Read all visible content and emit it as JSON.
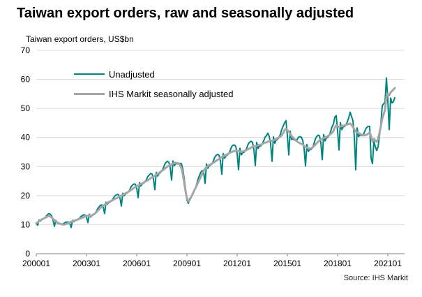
{
  "header": {
    "title": "Taiwan export orders, raw and seasonally adjusted",
    "subtitle": "Taiwan export orders, US$bn"
  },
  "footer": {
    "source": "Source: IHS Markit"
  },
  "colors": {
    "unadjusted": "#00857e",
    "seasonally_adjusted": "#a6a6a8",
    "grid": "#d9d9d9",
    "axis": "#808080",
    "text": "#000000"
  },
  "chart_data": {
    "type": "line",
    "title": "Taiwan export orders, raw and seasonally adjusted",
    "ylabel": "US$bn",
    "ylim": [
      0,
      70
    ],
    "yticks": [
      0,
      10,
      20,
      30,
      40,
      50,
      60,
      70
    ],
    "grid": "horizontal",
    "legend_position": "top-left",
    "x_start": "2000-01",
    "x_end": "2021-06",
    "x_frequency": "monthly",
    "xticks": [
      {
        "label": "200001",
        "month": 0
      },
      {
        "label": "200301",
        "month": 36
      },
      {
        "label": "200601",
        "month": 72
      },
      {
        "label": "200901",
        "month": 108
      },
      {
        "label": "201201",
        "month": 144
      },
      {
        "label": "201501",
        "month": 180
      },
      {
        "label": "201801",
        "month": 216
      },
      {
        "label": "202101",
        "month": 252
      }
    ],
    "series": [
      {
        "name": "Unadjusted",
        "color": "#00857e",
        "width": 2,
        "values": [
          10.3,
          9.8,
          11.6,
          11.2,
          11.7,
          11.9,
          12.3,
          12.8,
          13.4,
          13.8,
          13.6,
          13.0,
          11.6,
          9.4,
          11.5,
          10.5,
          10.4,
          10.2,
          10.2,
          10.2,
          10.5,
          10.8,
          10.9,
          10.9,
          10.5,
          9.0,
          11.5,
          11.0,
          11.4,
          11.5,
          11.8,
          12.2,
          12.8,
          13.1,
          13.4,
          13.3,
          12.6,
          10.7,
          13.6,
          12.6,
          13.1,
          13.4,
          13.8,
          14.5,
          15.5,
          16.1,
          16.7,
          16.8,
          16.0,
          13.8,
          17.7,
          17.0,
          17.6,
          17.8,
          18.2,
          18.9,
          19.7,
          20.1,
          20.4,
          20.3,
          19.2,
          16.4,
          20.8,
          19.9,
          20.6,
          20.8,
          21.3,
          22.0,
          23.1,
          23.6,
          24.0,
          23.9,
          22.5,
          19.3,
          24.5,
          23.3,
          24.0,
          24.3,
          24.8,
          25.5,
          26.6,
          27.1,
          27.6,
          27.4,
          25.7,
          22.0,
          28.0,
          26.7,
          27.5,
          27.9,
          28.5,
          29.4,
          30.7,
          31.4,
          31.8,
          31.5,
          29.6,
          25.3,
          31.9,
          30.3,
          31.0,
          30.9,
          31.0,
          31.1,
          31.0,
          29.2,
          26.0,
          22.4,
          18.4,
          17.3,
          19.0,
          19.4,
          20.3,
          21.3,
          22.5,
          24.0,
          25.7,
          27.0,
          28.1,
          28.6,
          28.1,
          24.2,
          30.9,
          29.4,
          30.2,
          30.5,
          31.0,
          31.9,
          33.2,
          33.9,
          34.2,
          33.9,
          32.0,
          27.3,
          34.5,
          32.8,
          33.7,
          33.9,
          34.5,
          35.5,
          36.8,
          37.3,
          37.4,
          36.9,
          34.4,
          28.9,
          36.3,
          34.0,
          34.8,
          34.9,
          35.5,
          36.5,
          37.8,
          38.4,
          38.7,
          38.3,
          35.9,
          30.3,
          38.3,
          36.2,
          37.1,
          37.1,
          37.8,
          38.8,
          40.1,
          40.6,
          41.5,
          40.4,
          37.8,
          31.8,
          40.2,
          38.0,
          39.1,
          39.4,
          40.0,
          41.1,
          42.8,
          44.0,
          45.0,
          45.8,
          40.7,
          34.0,
          42.2,
          39.3,
          39.6,
          39.1,
          39.0,
          39.3,
          40.1,
          40.3,
          40.1,
          39.0,
          36.1,
          30.2,
          37.6,
          35.2,
          35.8,
          35.9,
          36.5,
          37.7,
          39.4,
          40.3,
          40.8,
          40.6,
          38.1,
          32.4,
          41.0,
          38.8,
          39.8,
          40.1,
          40.8,
          42.0,
          43.7,
          44.5,
          47.0,
          47.5,
          42.2,
          35.7,
          45.1,
          42.7,
          43.6,
          43.8,
          44.3,
          45.4,
          46.8,
          48.7,
          47.2,
          45.8,
          40.0,
          28.9,
          43.3,
          40.3,
          40.9,
          40.6,
          40.8,
          41.5,
          42.8,
          43.5,
          43.8,
          43.8,
          32.8,
          31.0,
          38.6,
          36.9,
          35.5,
          36.7,
          40.5,
          44.6,
          50.9,
          51.6,
          52.2,
          60.5,
          52.7,
          42.7,
          53.6,
          51.9,
          52.3,
          53.7
        ]
      },
      {
        "name": "IHS Markit seasonally adjusted",
        "color": "#a6a6a8",
        "width": 3,
        "values": [
          10.5,
          10.8,
          11.2,
          11.5,
          11.8,
          12.0,
          12.3,
          12.5,
          12.8,
          13.0,
          12.8,
          12.5,
          12.0,
          11.5,
          11.2,
          10.8,
          10.5,
          10.3,
          10.2,
          10.0,
          10.0,
          10.2,
          10.3,
          10.5,
          10.8,
          11.0,
          11.2,
          11.3,
          11.5,
          11.6,
          11.8,
          12.0,
          12.2,
          12.4,
          12.6,
          12.8,
          13.0,
          13.0,
          13.2,
          13.0,
          13.2,
          13.5,
          13.8,
          14.2,
          14.8,
          15.2,
          15.8,
          16.2,
          16.5,
          16.8,
          17.2,
          17.5,
          17.8,
          18.0,
          18.2,
          18.5,
          18.8,
          19.0,
          19.2,
          19.5,
          19.8,
          20.0,
          20.2,
          20.5,
          20.8,
          21.0,
          21.3,
          21.6,
          22.0,
          22.3,
          22.6,
          23.0,
          23.2,
          23.5,
          23.8,
          24.0,
          24.2,
          24.5,
          24.8,
          25.0,
          25.3,
          25.6,
          26.0,
          26.3,
          26.5,
          26.8,
          27.2,
          27.5,
          27.8,
          28.2,
          28.5,
          28.8,
          29.2,
          29.6,
          30.0,
          30.3,
          30.5,
          30.8,
          31.0,
          31.2,
          31.3,
          31.2,
          31.0,
          30.5,
          29.5,
          27.5,
          24.5,
          21.5,
          19.0,
          18.0,
          18.5,
          19.5,
          20.5,
          21.5,
          22.5,
          23.5,
          24.5,
          25.5,
          26.5,
          27.5,
          28.5,
          29.2,
          29.8,
          30.2,
          30.5,
          30.8,
          31.0,
          31.3,
          31.6,
          32.0,
          32.3,
          32.6,
          33.0,
          33.3,
          33.5,
          33.8,
          34.0,
          34.2,
          34.5,
          34.8,
          35.0,
          35.2,
          35.3,
          35.5,
          35.5,
          35.3,
          35.2,
          35.0,
          35.2,
          35.3,
          35.5,
          35.8,
          36.0,
          36.2,
          36.5,
          36.8,
          37.0,
          37.0,
          37.2,
          37.3,
          37.5,
          37.5,
          37.8,
          38.0,
          38.2,
          38.3,
          38.5,
          38.8,
          39.0,
          38.8,
          39.0,
          39.2,
          39.5,
          39.8,
          40.0,
          40.3,
          40.8,
          41.5,
          42.5,
          43.0,
          42.5,
          42.0,
          41.3,
          40.5,
          40.0,
          39.5,
          39.0,
          38.6,
          38.3,
          38.0,
          37.8,
          37.5,
          37.2,
          36.8,
          36.5,
          36.3,
          36.2,
          36.3,
          36.5,
          37.0,
          37.5,
          38.0,
          38.5,
          39.0,
          39.3,
          39.5,
          39.8,
          40.0,
          40.2,
          40.5,
          40.8,
          41.2,
          41.6,
          42.2,
          43.5,
          44.2,
          43.8,
          43.6,
          43.8,
          44.0,
          44.0,
          44.2,
          44.3,
          44.5,
          44.6,
          44.8,
          44.3,
          43.6,
          42.8,
          42.0,
          41.8,
          41.5,
          41.3,
          41.0,
          40.8,
          40.7,
          40.8,
          41.0,
          41.3,
          41.8,
          40.5,
          38.5,
          39.5,
          39.0,
          38.5,
          39.5,
          41.5,
          43.8,
          46.5,
          48.0,
          49.5,
          54.0,
          55.0,
          54.5,
          55.5,
          56.0,
          56.5,
          57.0
        ]
      }
    ]
  }
}
